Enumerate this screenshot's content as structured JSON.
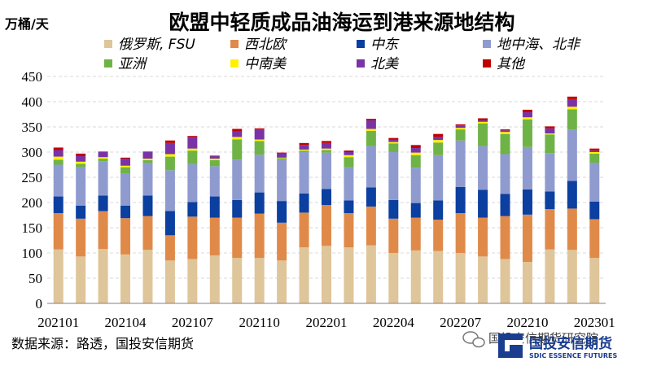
{
  "chart_data": {
    "type": "bar",
    "stacked": true,
    "title": "欧盟中轻质成品油海运到港来源地结构",
    "ylabel": "万桶/天",
    "xlabel": "",
    "ylim": [
      0,
      450
    ],
    "yticks": [
      0,
      50,
      100,
      150,
      200,
      250,
      300,
      350,
      400,
      450
    ],
    "grid": "horizontal",
    "legend_position": "top",
    "x_tick_labels": [
      "202101",
      "202104",
      "202107",
      "202110",
      "202201",
      "202204",
      "202207",
      "202210",
      "202301"
    ],
    "categories": [
      "202101",
      "202102",
      "202103",
      "202104",
      "202105",
      "202106",
      "202107",
      "202108",
      "202109",
      "202110",
      "202111",
      "202112",
      "202201",
      "202202",
      "202203",
      "202204",
      "202205",
      "202206",
      "202207",
      "202208",
      "202209",
      "202210",
      "202211",
      "202212",
      "202301"
    ],
    "series": [
      {
        "name": "俄罗斯, FSU",
        "color": "#dfc59a",
        "values": [
          107,
          93,
          108,
          97,
          106,
          85,
          88,
          95,
          90,
          90,
          85,
          111,
          114,
          111,
          115,
          100,
          105,
          104,
          100,
          93,
          88,
          82,
          107,
          106,
          90
        ]
      },
      {
        "name": "西北欧",
        "color": "#e08a4a",
        "values": [
          72,
          75,
          75,
          72,
          67,
          50,
          84,
          75,
          80,
          88,
          75,
          69,
          81,
          68,
          77,
          68,
          65,
          62,
          79,
          77,
          85,
          94,
          80,
          82,
          77
        ]
      },
      {
        "name": "中东",
        "color": "#0b3fa0",
        "values": [
          33,
          26,
          31,
          25,
          41,
          48,
          29,
          42,
          35,
          42,
          43,
          38,
          32,
          25,
          38,
          37,
          29,
          38,
          52,
          55,
          44,
          50,
          35,
          55,
          35
        ]
      },
      {
        "name": "地中海、北非",
        "color": "#8f9bcf",
        "values": [
          63,
          76,
          68,
          64,
          65,
          81,
          75,
          60,
          80,
          75,
          82,
          82,
          72,
          66,
          82,
          95,
          70,
          90,
          92,
          87,
          79,
          84,
          76,
          102,
          77
        ]
      },
      {
        "name": "亚洲",
        "color": "#6fb347",
        "values": [
          10,
          7,
          5,
          12,
          5,
          27,
          27,
          12,
          40,
          27,
          3,
          3,
          5,
          20,
          30,
          17,
          25,
          25,
          22,
          45,
          40,
          55,
          37,
          40,
          18
        ]
      },
      {
        "name": "中南美",
        "color": "#fff200",
        "values": [
          6,
          4,
          3,
          3,
          3,
          5,
          4,
          3,
          5,
          3,
          1,
          2,
          3,
          4,
          4,
          3,
          5,
          5,
          3,
          3,
          4,
          4,
          2,
          5,
          3
        ]
      },
      {
        "name": "北美",
        "color": "#7a33a6",
        "values": [
          13,
          11,
          10,
          14,
          13,
          22,
          23,
          5,
          11,
          20,
          8,
          9,
          11,
          6,
          17,
          5,
          9,
          6,
          5,
          3,
          3,
          10,
          10,
          15,
          3
        ]
      },
      {
        "name": "其他",
        "color": "#c00000",
        "values": [
          5,
          5,
          1,
          2,
          1,
          5,
          2,
          1,
          5,
          2,
          2,
          4,
          4,
          3,
          3,
          3,
          6,
          6,
          2,
          4,
          2,
          5,
          4,
          5,
          4
        ]
      }
    ]
  },
  "footer": {
    "source": "数据来源：路透，国投安信期货"
  },
  "watermark": {
    "text": "国投安信期货研究院"
  },
  "brand": {
    "name": "国投安信期货",
    "name_en": "SDIC ESSENCE FUTURES"
  }
}
